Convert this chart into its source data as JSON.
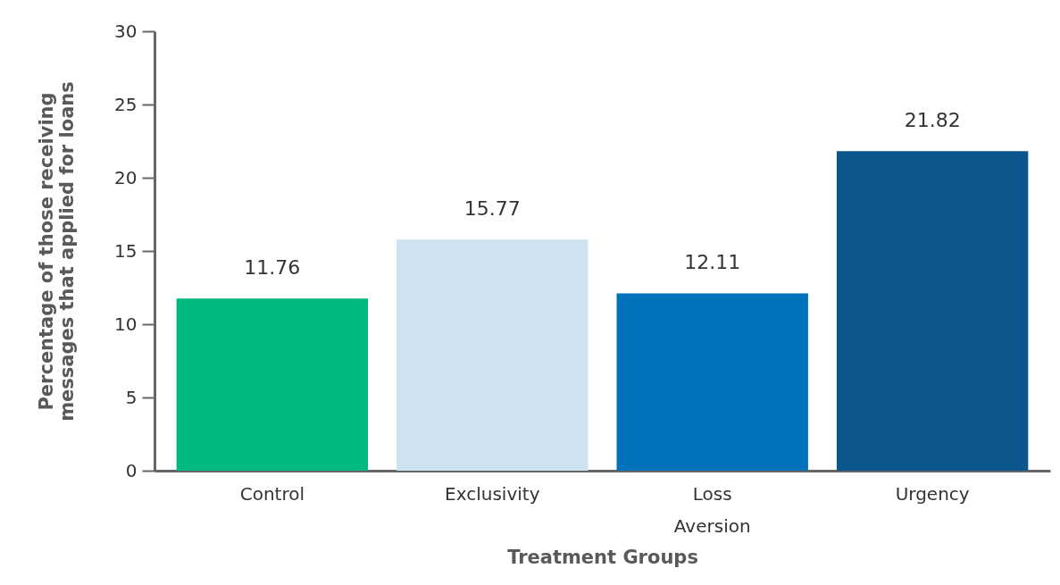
{
  "chart_data": {
    "type": "bar",
    "xlabel": "Treatment Groups",
    "ylabel": "Percentage of those receiving\nmessages that applied for loans",
    "categories": [
      "Control",
      "Exclusivity",
      "Loss Aversion",
      "Urgency"
    ],
    "values": [
      11.76,
      15.77,
      12.11,
      21.82
    ],
    "colors": [
      "#00b97e",
      "#cde3f1",
      "#0072bc",
      "#0c568e"
    ],
    "ylim": [
      0,
      30
    ],
    "yticks": [
      0,
      5,
      10,
      15,
      20,
      25,
      30
    ],
    "grid": false,
    "data_labels": true
  }
}
